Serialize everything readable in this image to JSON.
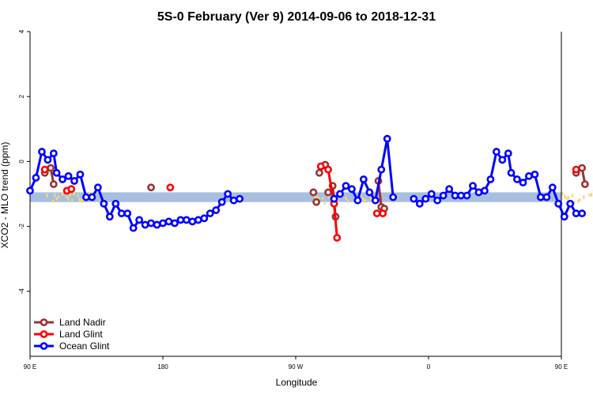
{
  "chart_data": {
    "type": "line",
    "title": "5S-0 February (Ver 9)   2014-09-06 to 2018-12-31",
    "xlabel": "Longitude",
    "ylabel": "XCO2 - MLO trend (ppm)",
    "xlim": [
      90,
      450
    ],
    "ylim": [
      -6,
      4
    ],
    "x_ticks": [
      {
        "value": 90,
        "label": "90 E"
      },
      {
        "value": 180,
        "label": "180"
      },
      {
        "value": 270,
        "label": "90 W"
      },
      {
        "value": 360,
        "label": "0"
      },
      {
        "value": 450,
        "label": "90 E"
      },
      {
        "value": 540,
        "label": "180"
      }
    ],
    "y_ticks": [
      {
        "value": 4,
        "label": "4"
      },
      {
        "value": 2,
        "label": "2"
      },
      {
        "value": 0,
        "label": "0"
      },
      {
        "value": -2,
        "label": "-2"
      },
      {
        "value": -4,
        "label": "-4"
      }
    ],
    "mlo_band": {
      "ymin": -1.25,
      "ymax": -0.95,
      "color": "#a7bedf"
    },
    "land_color": "#f7d77a",
    "land_segments": [
      [
        101,
        135
      ],
      [
        280,
        330
      ],
      [
        449,
        491
      ]
    ],
    "series": [
      {
        "name": "Land Nadir",
        "color": "#993333",
        "points": [
          [
            100,
            -0.35
          ],
          [
            104,
            -0.2
          ],
          [
            106,
            -0.7
          ],
          [
            172,
            -0.8
          ],
          [
            176,
            -1.95
          ],
          [
            282,
            -0.95
          ],
          [
            284,
            -1.25
          ],
          [
            286,
            -0.35
          ],
          [
            290,
            -0.1
          ],
          [
            292,
            -0.95
          ],
          [
            295,
            -0.75
          ],
          [
            297,
            -1.7
          ],
          [
            326,
            -0.6
          ],
          [
            328,
            -1.4
          ],
          [
            330,
            -1.45
          ],
          [
            460,
            -0.35
          ],
          [
            464,
            -0.2
          ],
          [
            466,
            -0.7
          ]
        ],
        "segments": [
          [
            [
              100,
              -0.35
            ],
            [
              104,
              -0.2
            ],
            [
              106,
              -0.7
            ]
          ],
          [
            [
              286,
              -0.35
            ],
            [
              290,
              -0.1
            ]
          ],
          [
            [
              295,
              -0.75
            ],
            [
              297,
              -1.7
            ]
          ],
          [
            [
              326,
              -0.6
            ],
            [
              328,
              -1.4
            ],
            [
              330,
              -1.45
            ]
          ],
          [
            [
              460,
              -0.35
            ],
            [
              464,
              -0.2
            ],
            [
              466,
              -0.7
            ]
          ]
        ]
      },
      {
        "name": "Land Glint",
        "color": "#ff0000",
        "points": [
          [
            100,
            -0.25
          ],
          [
            115,
            -0.9
          ],
          [
            118,
            -0.85
          ],
          [
            185,
            -0.8
          ],
          [
            287,
            -0.15
          ],
          [
            292,
            -0.25
          ],
          [
            296,
            -1.3
          ],
          [
            298,
            -2.35
          ],
          [
            325,
            -1.6
          ],
          [
            329,
            -1.6
          ],
          [
            460,
            -0.25
          ],
          [
            474,
            -0.9
          ],
          [
            477,
            -0.85
          ]
        ],
        "segments": [
          [
            [
              287,
              -0.15
            ],
            [
              292,
              -0.25
            ],
            [
              296,
              -1.3
            ],
            [
              298,
              -2.35
            ]
          ]
        ]
      },
      {
        "name": "Ocean Glint",
        "color": "#0000ff",
        "points": [
          [
            90,
            -0.9
          ],
          [
            94,
            -0.5
          ],
          [
            98,
            0.3
          ],
          [
            102,
            0.05
          ],
          [
            106,
            0.25
          ],
          [
            108,
            -0.35
          ],
          [
            112,
            -0.55
          ],
          [
            116,
            -0.45
          ],
          [
            120,
            -0.6
          ],
          [
            124,
            -0.4
          ],
          [
            128,
            -1.1
          ],
          [
            132,
            -1.1
          ],
          [
            136,
            -0.8
          ],
          [
            140,
            -1.3
          ],
          [
            144,
            -1.7
          ],
          [
            148,
            -1.3
          ],
          [
            152,
            -1.6
          ],
          [
            156,
            -1.6
          ],
          [
            160,
            -2.05
          ],
          [
            164,
            -1.8
          ],
          [
            168,
            -1.95
          ],
          [
            172,
            -1.9
          ],
          [
            176,
            -1.95
          ],
          [
            180,
            -1.9
          ],
          [
            184,
            -1.85
          ],
          [
            188,
            -1.9
          ],
          [
            192,
            -1.8
          ],
          [
            196,
            -1.8
          ],
          [
            200,
            -1.85
          ],
          [
            204,
            -1.8
          ],
          [
            208,
            -1.75
          ],
          [
            212,
            -1.6
          ],
          [
            216,
            -1.5
          ],
          [
            220,
            -1.25
          ],
          [
            224,
            -1.0
          ],
          [
            228,
            -1.2
          ],
          [
            232,
            -1.15
          ],
          [
            296,
            -1.15
          ],
          [
            300,
            -1.0
          ],
          [
            304,
            -0.75
          ],
          [
            308,
            -0.85
          ],
          [
            312,
            -1.2
          ],
          [
            316,
            -0.55
          ],
          [
            320,
            -0.95
          ],
          [
            324,
            -1.2
          ],
          [
            328,
            -0.25
          ],
          [
            332,
            0.7
          ],
          [
            336,
            -1.1
          ],
          [
            350,
            -1.15
          ],
          [
            354,
            -1.3
          ],
          [
            358,
            -1.15
          ],
          [
            362,
            -1.0
          ],
          [
            366,
            -1.2
          ],
          [
            370,
            -1.05
          ],
          [
            374,
            -0.85
          ],
          [
            378,
            -1.05
          ],
          [
            382,
            -1.05
          ],
          [
            386,
            -1.05
          ],
          [
            390,
            -0.75
          ],
          [
            394,
            -0.95
          ],
          [
            398,
            -0.9
          ],
          [
            402,
            -0.55
          ],
          [
            406,
            0.3
          ],
          [
            410,
            0.05
          ],
          [
            414,
            0.25
          ],
          [
            416,
            -0.35
          ],
          [
            420,
            -0.55
          ],
          [
            424,
            -0.65
          ],
          [
            428,
            -0.45
          ],
          [
            432,
            -0.4
          ],
          [
            436,
            -1.1
          ],
          [
            440,
            -1.1
          ],
          [
            444,
            -0.8
          ],
          [
            448,
            -1.3
          ],
          [
            452,
            -1.7
          ],
          [
            456,
            -1.3
          ],
          [
            460,
            -1.6
          ],
          [
            464,
            -1.6
          ]
        ],
        "segments": [
          [
            [
              90,
              -0.9
            ],
            [
              94,
              -0.5
            ],
            [
              98,
              0.3
            ],
            [
              102,
              0.05
            ],
            [
              106,
              0.25
            ],
            [
              108,
              -0.35
            ],
            [
              112,
              -0.55
            ],
            [
              116,
              -0.45
            ],
            [
              120,
              -0.6
            ],
            [
              124,
              -0.4
            ],
            [
              128,
              -1.1
            ],
            [
              132,
              -1.1
            ],
            [
              136,
              -0.8
            ],
            [
              140,
              -1.3
            ],
            [
              144,
              -1.7
            ],
            [
              148,
              -1.3
            ],
            [
              152,
              -1.6
            ],
            [
              156,
              -1.6
            ],
            [
              160,
              -2.05
            ],
            [
              164,
              -1.8
            ],
            [
              168,
              -1.95
            ],
            [
              172,
              -1.9
            ],
            [
              176,
              -1.95
            ],
            [
              180,
              -1.9
            ],
            [
              184,
              -1.85
            ],
            [
              188,
              -1.9
            ],
            [
              192,
              -1.8
            ],
            [
              196,
              -1.8
            ],
            [
              200,
              -1.85
            ],
            [
              204,
              -1.8
            ],
            [
              208,
              -1.75
            ],
            [
              212,
              -1.6
            ],
            [
              216,
              -1.5
            ],
            [
              220,
              -1.25
            ],
            [
              224,
              -1.0
            ],
            [
              228,
              -1.2
            ],
            [
              232,
              -1.15
            ]
          ],
          [
            [
              296,
              -1.15
            ],
            [
              300,
              -1.0
            ],
            [
              304,
              -0.75
            ],
            [
              308,
              -0.85
            ],
            [
              312,
              -1.2
            ],
            [
              316,
              -0.55
            ],
            [
              320,
              -0.95
            ],
            [
              324,
              -1.2
            ],
            [
              328,
              -0.25
            ],
            [
              332,
              0.7
            ],
            [
              336,
              -1.1
            ]
          ],
          [
            [
              350,
              -1.15
            ],
            [
              354,
              -1.3
            ],
            [
              358,
              -1.15
            ],
            [
              362,
              -1.0
            ],
            [
              366,
              -1.2
            ],
            [
              370,
              -1.05
            ],
            [
              374,
              -0.85
            ],
            [
              378,
              -1.05
            ],
            [
              382,
              -1.05
            ],
            [
              386,
              -1.05
            ],
            [
              390,
              -0.75
            ],
            [
              394,
              -0.95
            ],
            [
              398,
              -0.9
            ],
            [
              402,
              -0.55
            ],
            [
              406,
              0.3
            ],
            [
              410,
              0.05
            ],
            [
              414,
              0.25
            ],
            [
              416,
              -0.35
            ],
            [
              420,
              -0.55
            ],
            [
              424,
              -0.65
            ],
            [
              428,
              -0.45
            ],
            [
              432,
              -0.4
            ],
            [
              436,
              -1.1
            ],
            [
              440,
              -1.1
            ],
            [
              444,
              -0.8
            ],
            [
              448,
              -1.3
            ],
            [
              452,
              -1.7
            ],
            [
              456,
              -1.3
            ],
            [
              460,
              -1.6
            ],
            [
              464,
              -1.6
            ]
          ]
        ]
      }
    ],
    "legend_position": "bottom-left",
    "grid": false
  }
}
